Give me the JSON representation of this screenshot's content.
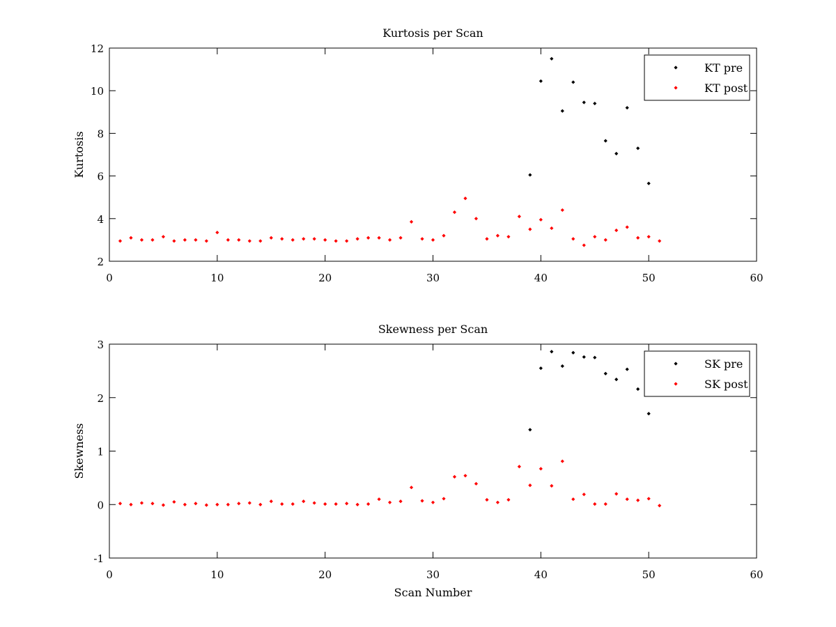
{
  "colors": {
    "pre": "#000000",
    "post": "#ff0000"
  },
  "chart_data": [
    {
      "type": "scatter",
      "title": "Kurtosis per Scan",
      "xlabel": "",
      "ylabel": "Kurtosis",
      "xlim": [
        0,
        60
      ],
      "ylim": [
        2,
        12
      ],
      "xticks": [
        0,
        10,
        20,
        30,
        40,
        50,
        60
      ],
      "yticks": [
        2,
        4,
        6,
        8,
        10,
        12
      ],
      "grid": false,
      "legend_position": "top-right",
      "series": [
        {
          "name": "KT pre",
          "color": "#000000",
          "x": [
            39,
            40,
            41,
            42,
            43,
            44,
            45,
            46,
            47,
            48,
            49,
            50
          ],
          "y": [
            6.05,
            10.45,
            11.5,
            9.05,
            10.4,
            9.45,
            9.4,
            7.65,
            7.05,
            9.2,
            7.3,
            5.65
          ]
        },
        {
          "name": "KT post",
          "color": "#ff0000",
          "x": [
            1,
            2,
            3,
            4,
            5,
            6,
            7,
            8,
            9,
            10,
            11,
            12,
            13,
            14,
            15,
            16,
            17,
            18,
            19,
            20,
            21,
            22,
            23,
            24,
            25,
            26,
            27,
            28,
            29,
            30,
            31,
            32,
            33,
            34,
            35,
            36,
            37,
            38,
            39,
            40,
            41,
            42,
            43,
            44,
            45,
            46,
            47,
            48,
            49,
            50,
            51
          ],
          "y": [
            2.95,
            3.1,
            3.0,
            3.0,
            3.15,
            2.95,
            3.0,
            3.0,
            2.95,
            3.35,
            3.0,
            3.0,
            2.95,
            2.95,
            3.1,
            3.05,
            3.0,
            3.05,
            3.05,
            3.0,
            2.95,
            2.95,
            3.05,
            3.1,
            3.1,
            3.0,
            3.1,
            3.85,
            3.05,
            3.0,
            3.2,
            4.3,
            4.95,
            4.0,
            3.05,
            3.2,
            3.15,
            4.1,
            3.5,
            3.95,
            3.55,
            4.4,
            3.05,
            2.75,
            3.15,
            3.0,
            3.45,
            3.6,
            3.1,
            3.15,
            2.95
          ]
        }
      ]
    },
    {
      "type": "scatter",
      "title": "Skewness per Scan",
      "xlabel": "Scan Number",
      "ylabel": "Skewness",
      "xlim": [
        0,
        60
      ],
      "ylim": [
        -1,
        3
      ],
      "xticks": [
        0,
        10,
        20,
        30,
        40,
        50,
        60
      ],
      "yticks": [
        -1,
        0,
        1,
        2,
        3
      ],
      "grid": false,
      "legend_position": "top-right",
      "series": [
        {
          "name": "SK pre",
          "color": "#000000",
          "x": [
            39,
            40,
            41,
            42,
            43,
            44,
            45,
            46,
            47,
            48,
            49,
            50
          ],
          "y": [
            1.4,
            2.55,
            2.86,
            2.59,
            2.84,
            2.76,
            2.75,
            2.45,
            2.34,
            2.53,
            2.16,
            1.7
          ]
        },
        {
          "name": "SK post",
          "color": "#ff0000",
          "x": [
            1,
            2,
            3,
            4,
            5,
            6,
            7,
            8,
            9,
            10,
            11,
            12,
            13,
            14,
            15,
            16,
            17,
            18,
            19,
            20,
            21,
            22,
            23,
            24,
            25,
            26,
            27,
            28,
            29,
            30,
            31,
            32,
            33,
            34,
            35,
            36,
            37,
            38,
            39,
            40,
            41,
            42,
            43,
            44,
            45,
            46,
            47,
            48,
            49,
            50,
            51
          ],
          "y": [
            0.02,
            0.0,
            0.03,
            0.02,
            -0.01,
            0.05,
            0.0,
            0.02,
            -0.01,
            0.0,
            0.0,
            0.02,
            0.03,
            0.0,
            0.06,
            0.01,
            0.01,
            0.06,
            0.03,
            0.01,
            0.01,
            0.02,
            0.0,
            0.01,
            0.1,
            0.04,
            0.06,
            0.32,
            0.07,
            0.04,
            0.11,
            0.52,
            0.54,
            0.39,
            0.09,
            0.04,
            0.09,
            0.71,
            0.36,
            0.67,
            0.35,
            0.81,
            0.1,
            0.19,
            0.01,
            0.01,
            0.2,
            0.1,
            0.08,
            0.11,
            -0.02
          ]
        }
      ]
    }
  ]
}
